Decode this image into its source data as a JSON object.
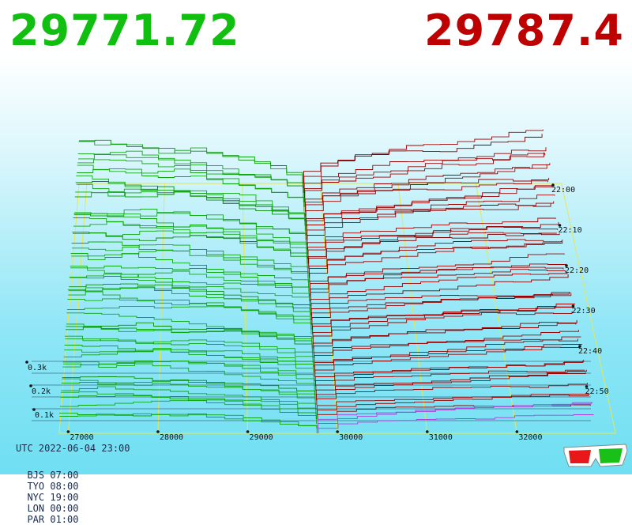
{
  "header": {
    "bid_price": "29771.72",
    "ask_price": "29787.4",
    "bid_color": "#10bf10",
    "ask_color": "#bf0000"
  },
  "footer": {
    "utc": "UTC 2022-06-04 23:00",
    "zones": [
      "BJS 07:00",
      "TYO 08:00",
      "NYC 19:00",
      "LON 00:00",
      "PAR 01:00"
    ]
  },
  "icons": {
    "glasses": "3d-glasses-icon"
  },
  "chart_data": {
    "type": "area",
    "view": "3d-depth-history",
    "x_ticks": [
      27000,
      28000,
      29000,
      30000,
      31000,
      32000
    ],
    "x_tick_labels": [
      "27000",
      "28000",
      "29000",
      "30000",
      "31000",
      "32000"
    ],
    "depth_ticks": [
      0.1,
      0.2,
      0.3
    ],
    "depth_tick_labels": [
      "0.1k",
      "0.2k",
      "0.3k"
    ],
    "time_ticks": [
      "22:00",
      "22:10",
      "22:20",
      "22:30",
      "22:40",
      "22:50"
    ],
    "bid_price": 29771.72,
    "ask_price": 29787.4,
    "series": [
      {
        "name": "bids",
        "color": "#10a810"
      },
      {
        "name": "asks",
        "color": "#a00000"
      }
    ]
  }
}
